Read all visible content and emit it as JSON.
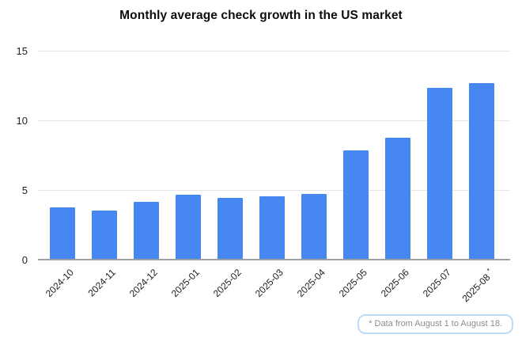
{
  "title": "Monthly average check growth in the US market",
  "footnote": {
    "text": "* Data from August 1 to August 18."
  },
  "colors": {
    "bar": "#4687f2",
    "gridline": "#e7e7e7",
    "axis_line": "#9aa0a6",
    "title_text": "#0d0d0d",
    "tick_text": "#1f1f1f",
    "footnote_text": "#8d8d8d",
    "footnote_border": "#bcdaf6",
    "background": "#ffffff"
  },
  "chart_data": {
    "type": "bar",
    "title": "Monthly average check growth in the US market",
    "categories": [
      "2024-10",
      "2024-11",
      "2024-12",
      "2025-01",
      "2025-02",
      "2025-03",
      "2025-04",
      "2025-05",
      "2025-06",
      "2025-07",
      "2025-08*"
    ],
    "values": [
      3.8,
      3.6,
      4.2,
      4.7,
      4.5,
      4.6,
      4.8,
      7.9,
      8.8,
      12.4,
      12.7
    ],
    "xlabel": "",
    "ylabel": "",
    "ylim": [
      0,
      15
    ],
    "yticks": [
      0,
      5,
      10,
      15
    ],
    "grid": true,
    "legend": false,
    "bar_color": "#4687f2",
    "footnote": "* Data from August 1 to August 18."
  }
}
